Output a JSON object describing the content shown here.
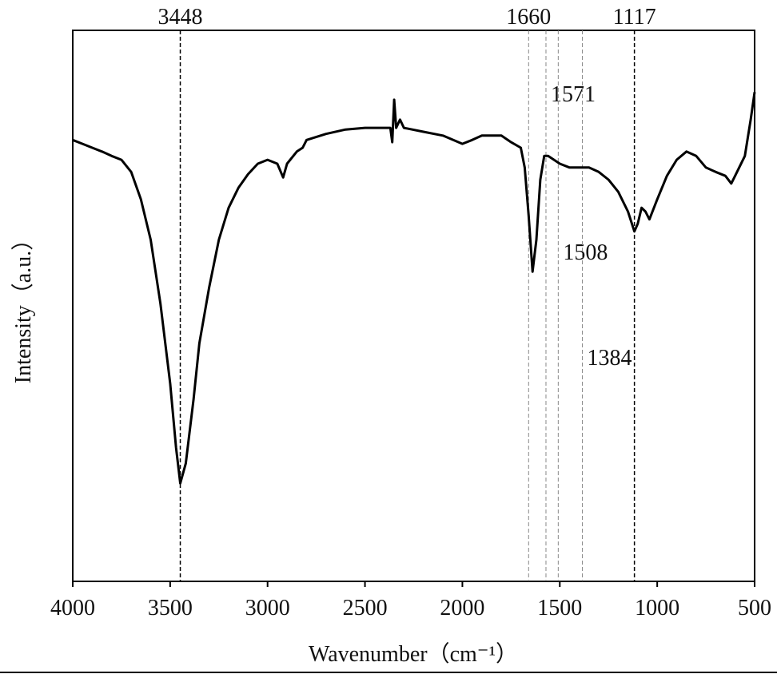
{
  "chart_data": {
    "type": "line",
    "x_label": "Wavenumber（cm⁻¹）",
    "y_label": "Intensity（a.u.）",
    "xlim": [
      4000,
      500
    ],
    "ylim": [
      0,
      100
    ],
    "xticks": [
      4000,
      3500,
      3000,
      2500,
      2000,
      1500,
      1000,
      500
    ],
    "peaks": [
      3448,
      1660,
      1571,
      1508,
      1384,
      1117
    ],
    "series": [
      {
        "color": "#000000",
        "x": [
          4000,
          3950,
          3900,
          3850,
          3800,
          3750,
          3700,
          3650,
          3600,
          3550,
          3500,
          3470,
          3448,
          3420,
          3380,
          3350,
          3300,
          3250,
          3200,
          3150,
          3100,
          3050,
          3000,
          2950,
          2920,
          2900,
          2850,
          2820,
          2800,
          2700,
          2600,
          2500,
          2400,
          2370,
          2360,
          2350,
          2340,
          2320,
          2300,
          2200,
          2100,
          2000,
          1950,
          1900,
          1800,
          1750,
          1700,
          1680,
          1660,
          1640,
          1620,
          1600,
          1580,
          1560,
          1500,
          1450,
          1400,
          1350,
          1300,
          1250,
          1200,
          1150,
          1117,
          1100,
          1080,
          1060,
          1040,
          1000,
          950,
          900,
          850,
          800,
          750,
          700,
          650,
          620,
          600,
          550,
          520,
          500
        ],
        "values": [
          80.1,
          79.4,
          78.7,
          78.0,
          77.2,
          76.5,
          74.3,
          69.3,
          62.0,
          50.4,
          35.9,
          24.3,
          17.8,
          21.4,
          33.0,
          43.2,
          53.3,
          62.0,
          67.8,
          71.4,
          73.9,
          75.8,
          76.5,
          75.8,
          73.3,
          75.8,
          78.0,
          78.7,
          80.1,
          81.2,
          82.0,
          82.3,
          82.3,
          82.3,
          79.7,
          87.4,
          82.3,
          83.8,
          82.3,
          81.6,
          80.9,
          79.4,
          80.1,
          80.9,
          80.9,
          79.7,
          78.7,
          75.1,
          66.4,
          56.2,
          62.0,
          72.9,
          77.2,
          77.2,
          75.8,
          75.1,
          75.1,
          75.1,
          74.3,
          72.9,
          70.7,
          67.1,
          63.5,
          64.9,
          67.8,
          67.1,
          65.7,
          69.3,
          73.6,
          76.5,
          78.0,
          77.2,
          75.1,
          74.3,
          73.6,
          72.2,
          73.6,
          77.2,
          83.8,
          88.8
        ]
      }
    ]
  }
}
